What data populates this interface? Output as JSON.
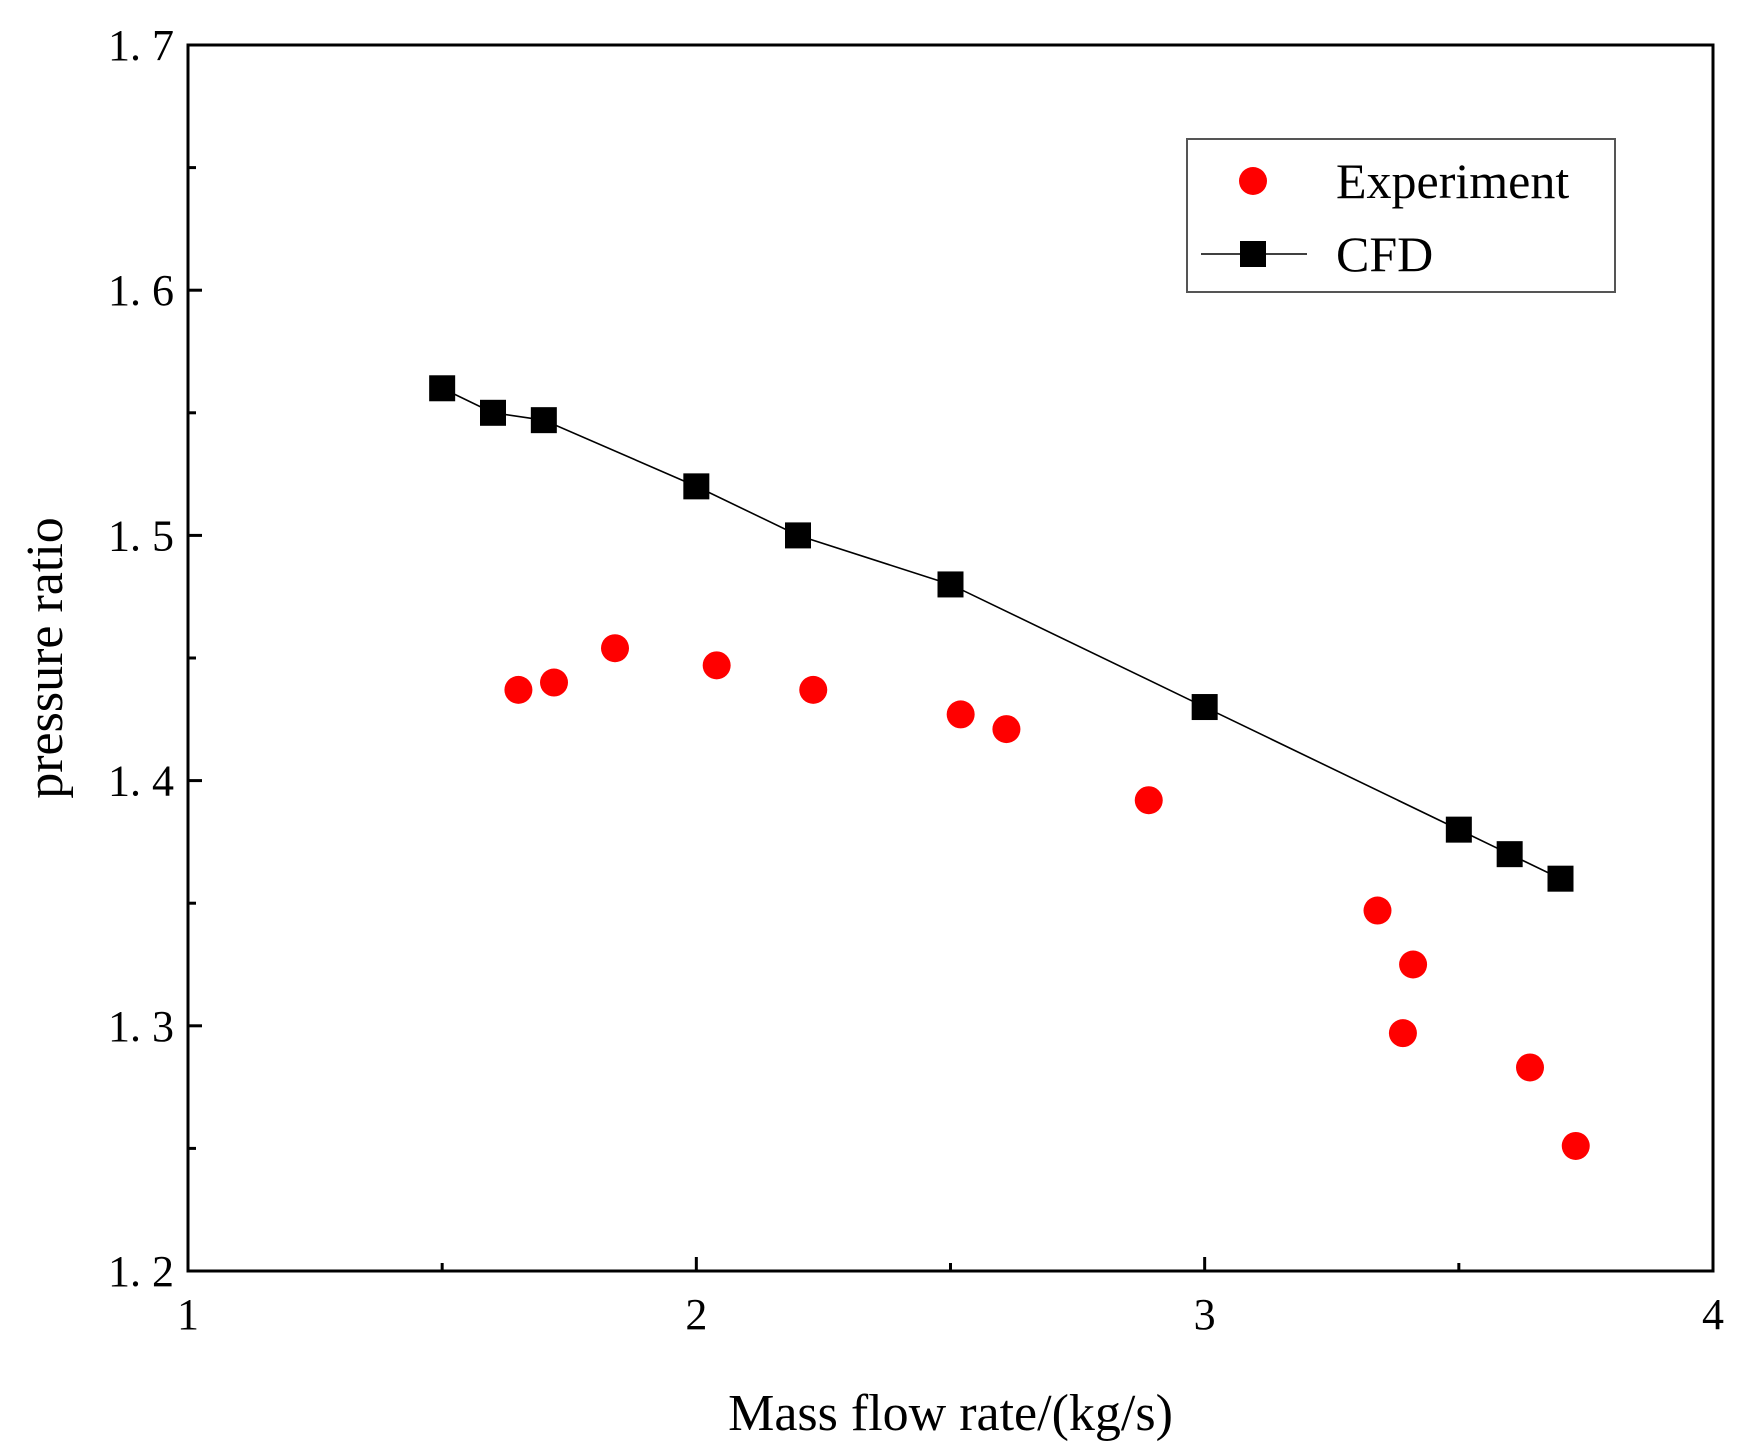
{
  "chart_data": {
    "type": "scatter",
    "title": "",
    "xlabel": "Mass flow rate/(kg/s)",
    "ylabel": "pressure ratio",
    "xlim": [
      1,
      4
    ],
    "ylim": [
      1.2,
      1.7
    ],
    "xticks": [
      1,
      2,
      3,
      4
    ],
    "xtick_labels": [
      "1",
      "2",
      "3",
      "4"
    ],
    "yticks": [
      1.2,
      1.3,
      1.4,
      1.5,
      1.6,
      1.7
    ],
    "ytick_labels": [
      "1. 2",
      "1. 3",
      "1. 4",
      "1. 5",
      "1. 6",
      "1. 7"
    ],
    "grid": false,
    "legend_position": "top-right",
    "series": [
      {
        "name": "Experiment",
        "marker": "circle",
        "line": false,
        "color": "#ff0000",
        "x": [
          1.65,
          1.72,
          1.84,
          2.04,
          2.23,
          2.52,
          2.61,
          2.89,
          3.34,
          3.41,
          3.39,
          3.64,
          3.73
        ],
        "y": [
          1.437,
          1.44,
          1.454,
          1.447,
          1.437,
          1.427,
          1.421,
          1.392,
          1.347,
          1.325,
          1.297,
          1.283,
          1.251
        ]
      },
      {
        "name": "CFD",
        "marker": "square",
        "line": true,
        "color": "#000000",
        "x": [
          1.5,
          1.6,
          1.7,
          2.0,
          2.2,
          2.5,
          3.0,
          3.5,
          3.6,
          3.7
        ],
        "y": [
          1.56,
          1.55,
          1.547,
          1.52,
          1.5,
          1.48,
          1.43,
          1.38,
          1.37,
          1.36
        ]
      }
    ]
  }
}
